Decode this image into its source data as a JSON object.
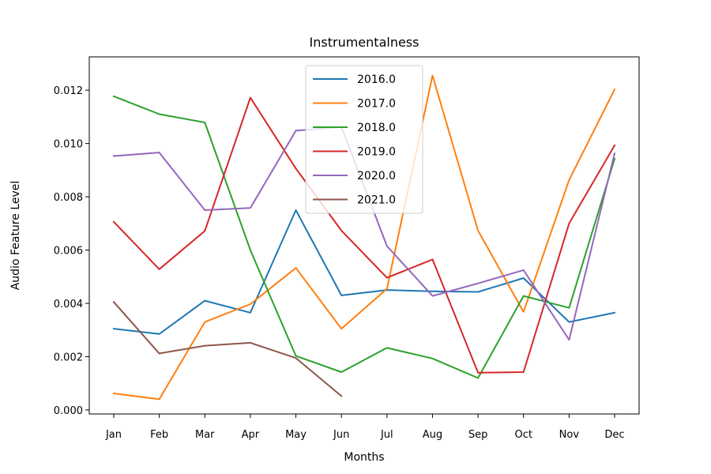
{
  "chart_data": {
    "type": "line",
    "title": "Instrumentalness",
    "xlabel": "Months",
    "ylabel": "Audio Feature Level",
    "categories": [
      "Jan",
      "Feb",
      "Mar",
      "Apr",
      "May",
      "Jun",
      "Jul",
      "Aug",
      "Sep",
      "Oct",
      "Nov",
      "Dec"
    ],
    "ylim": [
      -0.00015,
      0.01325
    ],
    "yticks": [
      0.0,
      0.002,
      0.004,
      0.006,
      0.008,
      0.01,
      0.012
    ],
    "ytick_labels": [
      "0.000",
      "0.002",
      "0.004",
      "0.006",
      "0.008",
      "0.010",
      "0.012"
    ],
    "grid": false,
    "legend_position": "top-center",
    "series": [
      {
        "name": "2016.0",
        "color": "#1f77b4",
        "values": [
          0.00305,
          0.00285,
          0.0041,
          0.00365,
          0.0075,
          0.0043,
          0.0045,
          0.00445,
          0.00443,
          0.00495,
          0.0033,
          0.00365
        ]
      },
      {
        "name": "2017.0",
        "color": "#ff7f0e",
        "values": [
          0.00062,
          0.0004,
          0.0033,
          0.00397,
          0.00533,
          0.00305,
          0.00455,
          0.01255,
          0.00673,
          0.00368,
          0.00863,
          0.01203
        ]
      },
      {
        "name": "2018.0",
        "color": "#2ca02c",
        "values": [
          0.01177,
          0.0111,
          0.01079,
          0.006,
          0.00203,
          0.00142,
          0.00233,
          0.00193,
          0.0012,
          0.00428,
          0.00383,
          0.00943
        ]
      },
      {
        "name": "2019.0",
        "color": "#d62728",
        "values": [
          0.00706,
          0.00528,
          0.00672,
          0.01172,
          0.00906,
          0.00673,
          0.00496,
          0.00565,
          0.0014,
          0.00142,
          0.007,
          0.00993
        ]
      },
      {
        "name": "2020.0",
        "color": "#9467bd",
        "values": [
          0.00953,
          0.00966,
          0.0075,
          0.00758,
          0.01048,
          0.01062,
          0.00615,
          0.00428,
          0.00475,
          0.00525,
          0.00263,
          0.00963
        ]
      },
      {
        "name": "2021.0",
        "color": "#8c564b",
        "values": [
          0.00405,
          0.00212,
          0.00241,
          0.00252,
          0.00195,
          0.00052,
          null,
          null,
          null,
          null,
          null,
          null
        ]
      }
    ]
  }
}
